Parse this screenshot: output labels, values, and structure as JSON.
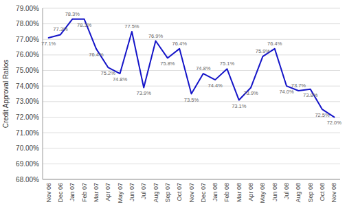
{
  "chart_data": {
    "type": "line",
    "categories": [
      "Nov 06",
      "Dec 06",
      "Jan 07",
      "Feb 07",
      "Mar 07",
      "Apr 07",
      "May 07",
      "Jun 07",
      "Jul 07",
      "Aug 07",
      "Sep 07",
      "Oct 07",
      "Nov 07",
      "Dec 07",
      "Jan 08",
      "Feb 08",
      "Mar 08",
      "Apr 08",
      "May 08",
      "Jun 08",
      "Jul 08",
      "Aug 08",
      "Sep 08",
      "Oct 08",
      "Nov 08"
    ],
    "values": [
      77.1,
      77.3,
      78.3,
      78.3,
      76.4,
      75.2,
      74.8,
      77.5,
      73.9,
      76.9,
      75.8,
      76.4,
      73.5,
      74.8,
      74.4,
      75.1,
      73.1,
      73.9,
      75.9,
      76.4,
      74.0,
      73.7,
      73.8,
      72.5,
      72.0
    ],
    "value_labels": [
      "77.1%",
      "77.3%",
      "78.3%",
      "78.3%",
      "76.4%",
      "75.2%",
      "74.8%",
      "77.5%",
      "73.9%",
      "76.9%",
      "75.8%",
      "76.4%",
      "73.5%",
      "74.8%",
      "74.4%",
      "75.1%",
      "73.1%",
      "73.9%",
      "75.9%",
      "76.4%",
      "74.0%",
      "73.7%",
      "73.8%",
      "72.5%",
      "72.0%"
    ],
    "color": "#1414c8",
    "ylabel": "Credit Approval Ratios",
    "ylim": [
      68.0,
      79.0
    ],
    "yticks": [
      {
        "value": 68,
        "label": "68.00%"
      },
      {
        "value": 69,
        "label": "69.00%"
      },
      {
        "value": 70,
        "label": "70.00%"
      },
      {
        "value": 71,
        "label": "71.00%"
      },
      {
        "value": 72,
        "label": "72.00%"
      },
      {
        "value": 73,
        "label": "73.00%"
      },
      {
        "value": 74,
        "label": "74.00%"
      },
      {
        "value": 75,
        "label": "75.00%"
      },
      {
        "value": 76,
        "label": "76.00%"
      },
      {
        "value": 77,
        "label": "77.00%"
      },
      {
        "value": 78,
        "label": "78.00%"
      },
      {
        "value": 79,
        "label": "79.00%"
      }
    ],
    "grid": true,
    "data_labels": true
  }
}
